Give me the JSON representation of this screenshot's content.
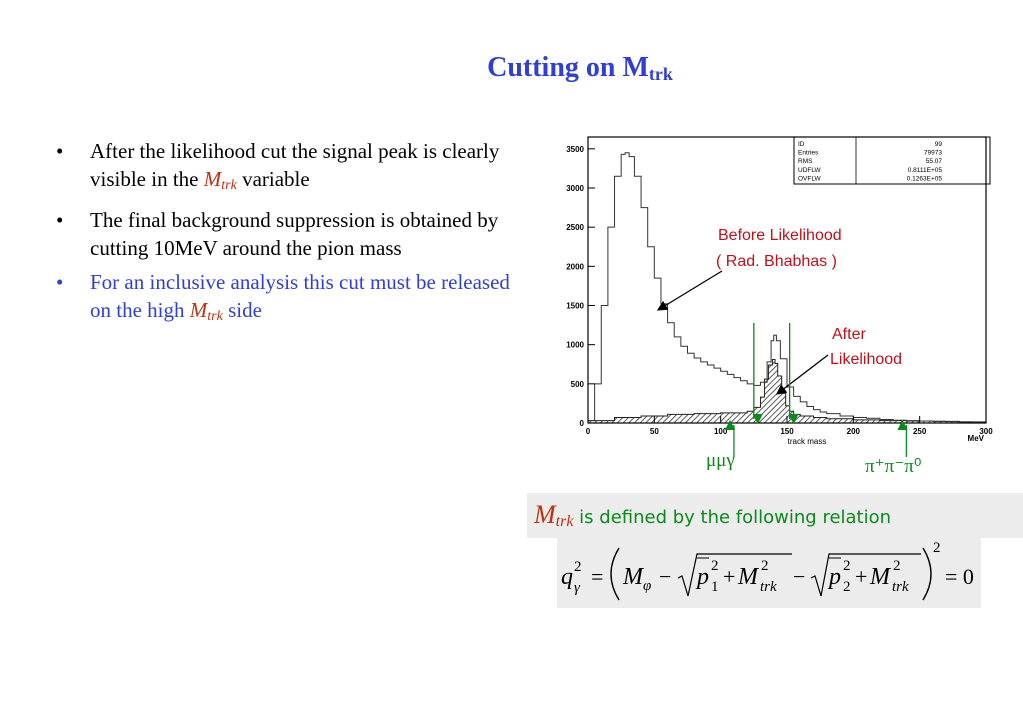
{
  "slide": {
    "title_main": "Cutting on M",
    "title_sub": "trk",
    "bullets": [
      {
        "pre": "After the likelihood cut the signal peak is clearly visible in the ",
        "var": "M",
        "var_sub": "trk",
        "post": " variable"
      },
      {
        "text": "The final background suppression is obtained by cutting 10MeV around the pion mass"
      },
      {
        "pre": "For an inclusive analysis this cut must be released on the high ",
        "var": "M",
        "var_sub": "trk",
        "post": " side"
      }
    ],
    "definition": {
      "var": "M",
      "var_sub": "trk",
      "text": " is defined by the following relation"
    },
    "equation": {
      "lhs": "q",
      "lhs_sup": "2",
      "lhs_sub": "γ",
      "m_phi": "M",
      "phi": "φ",
      "p1": "p",
      "p1_sub": "1",
      "p2": "p",
      "p2_sub": "2",
      "sq": "2",
      "mtrk": "M",
      "trk": "trk",
      "outer_sup": "2",
      "rhs": "= 0"
    },
    "colors": {
      "title": "#2f3ed6",
      "highlight": "#c03010",
      "annotation": "#c0101a",
      "channel": "#0a8a1a"
    }
  },
  "chart_data": {
    "type": "histogram",
    "xlabel": "track mass",
    "x_unit": "MeV",
    "xlim": [
      0,
      300
    ],
    "ylim": [
      0,
      3600
    ],
    "x_ticks": [
      "0",
      "50",
      "100",
      "150",
      "200",
      "250",
      "300"
    ],
    "y_ticks": [
      "0",
      "500",
      "1000",
      "1500",
      "2000",
      "2500",
      "3000",
      "3500"
    ],
    "x_tick_values": [
      0,
      50,
      100,
      150,
      200,
      250,
      300
    ],
    "y_tick_values": [
      0,
      500,
      1000,
      1500,
      2000,
      2500,
      3000,
      3500
    ],
    "stats": [
      {
        "label": "ID",
        "value": "99"
      },
      {
        "label": "Entries",
        "value": "79973"
      },
      {
        "label": "RMS",
        "value": "55.07"
      },
      {
        "label": "UDFLW",
        "value": "0.8111E+05"
      },
      {
        "label": "OVFLW",
        "value": "0.1263E+05"
      }
    ],
    "before_likelihood": {
      "x": [
        0,
        5,
        10,
        15,
        20,
        25,
        28,
        31,
        35,
        40,
        45,
        50,
        55,
        60,
        65,
        70,
        75,
        80,
        85,
        90,
        95,
        100,
        105,
        110,
        115,
        120,
        125,
        130,
        135,
        138,
        140,
        142,
        145,
        150,
        155,
        160,
        165,
        170,
        175,
        180,
        190,
        200,
        210,
        220,
        230,
        240,
        250,
        260,
        270,
        280,
        290,
        300
      ],
      "y": [
        30,
        500,
        1500,
        2500,
        3150,
        3430,
        3450,
        3400,
        3150,
        2750,
        2250,
        1850,
        1520,
        1280,
        1100,
        980,
        890,
        830,
        780,
        740,
        700,
        660,
        620,
        580,
        540,
        500,
        480,
        520,
        780,
        1050,
        1120,
        1050,
        820,
        460,
        340,
        270,
        210,
        170,
        140,
        120,
        90,
        70,
        60,
        45,
        35,
        30,
        25,
        22,
        18,
        15,
        12,
        10
      ]
    },
    "after_likelihood": {
      "x": [
        0,
        20,
        40,
        60,
        80,
        100,
        110,
        120,
        125,
        130,
        133,
        136,
        139,
        141,
        143,
        146,
        149,
        152,
        155,
        160,
        170,
        180,
        200,
        220,
        240,
        260,
        280,
        300
      ],
      "y": [
        30,
        70,
        90,
        110,
        120,
        130,
        130,
        150,
        200,
        330,
        560,
        740,
        810,
        760,
        600,
        380,
        220,
        150,
        110,
        90,
        70,
        55,
        40,
        30,
        25,
        20,
        15,
        10
      ]
    },
    "cut_lines_x": [
      125,
      152
    ],
    "annotations": [
      {
        "text": "Before Likelihood",
        "text2": "( Rad. Bhabhas )"
      },
      {
        "text": "After",
        "text2": "Likelihood"
      }
    ],
    "channel_labels": [
      {
        "text": "μμγ",
        "x": 110
      },
      {
        "text": "π⁺π⁻π⁰",
        "x": 240
      }
    ]
  }
}
